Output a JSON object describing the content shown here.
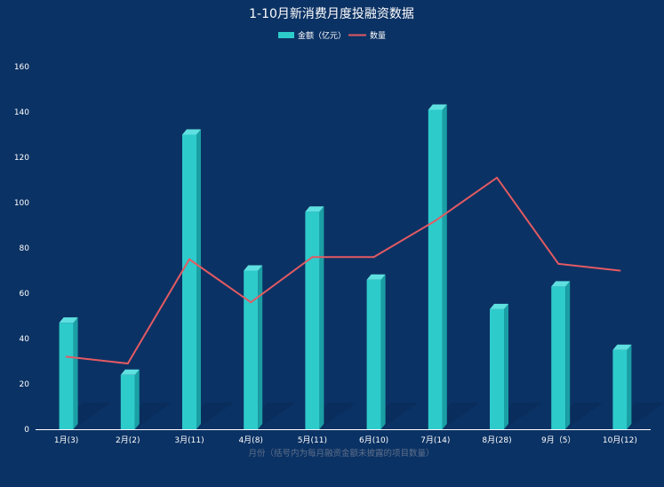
{
  "chart_data": {
    "type": "bar",
    "title": "1-10月新消费月度投融资数据",
    "xlabel": "月份（括号内为每月融资金额未披露的项目数量）",
    "ylabel": "",
    "categories": [
      "1月(3)",
      "2月(2)",
      "3月(11)",
      "4月(8)",
      "5月(11)",
      "6月(10)",
      "7月(14)",
      "8月(28)",
      "9月（5）",
      "10月(12)"
    ],
    "series": [
      {
        "name": "金额（亿元）",
        "type": "bar",
        "values": [
          47,
          24,
          130,
          70,
          96,
          66,
          141,
          53,
          63,
          35
        ]
      },
      {
        "name": "数量",
        "type": "line",
        "values": [
          32,
          29,
          75,
          56,
          76,
          76,
          92,
          111,
          73,
          70
        ]
      }
    ],
    "ylim": [
      0,
      160
    ],
    "yticks": [
      0,
      20,
      40,
      60,
      80,
      100,
      120,
      140,
      160
    ],
    "grid": false,
    "legend": "top-center",
    "colors": {
      "background": "#0b3264",
      "bar": "#2ecbcb",
      "bar_dark": "#1a9fa4",
      "bar_top": "#5fe0e0",
      "line": "#e35a62",
      "text": "#ffffff",
      "axis_title": "#5d6f8a"
    }
  }
}
